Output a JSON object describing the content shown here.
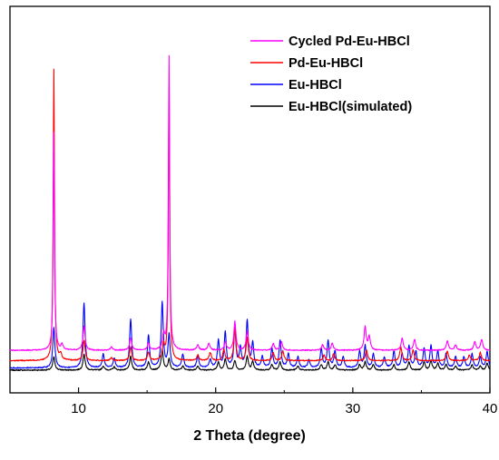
{
  "chart_data": {
    "type": "line",
    "xlabel": "2 Theta (degree)",
    "ylabel": "",
    "xlim": [
      5,
      40
    ],
    "xticks": [
      10,
      20,
      30,
      40
    ],
    "y_axis_ticks": false,
    "legend_position": "top-right",
    "series": [
      {
        "name": "Cycled Pd-Eu-HBCl",
        "color": "#ff00ff",
        "baseline": 0.73,
        "peaks": [
          [
            8.2,
            8.0
          ],
          [
            8.8,
            0.2
          ],
          [
            10.4,
            0.9
          ],
          [
            12.4,
            0.12
          ],
          [
            13.8,
            0.45
          ],
          [
            15.1,
            0.25
          ],
          [
            16.2,
            0.55
          ],
          [
            16.6,
            10.8
          ],
          [
            18.7,
            0.2
          ],
          [
            19.5,
            0.25
          ],
          [
            20.7,
            0.3
          ],
          [
            21.4,
            1.05
          ],
          [
            22.3,
            0.7
          ],
          [
            24.2,
            0.25
          ],
          [
            24.8,
            0.3
          ],
          [
            27.8,
            0.2
          ],
          [
            28.5,
            0.25
          ],
          [
            30.9,
            0.85
          ],
          [
            31.2,
            0.5
          ],
          [
            33.6,
            0.45
          ],
          [
            34.5,
            0.4
          ],
          [
            36.9,
            0.35
          ],
          [
            37.5,
            0.2
          ],
          [
            38.9,
            0.3
          ],
          [
            39.4,
            0.4
          ]
        ]
      },
      {
        "name": "Pd-Eu-HBCl",
        "color": "#ff0000",
        "baseline": 0.35,
        "peaks": [
          [
            8.2,
            10.7
          ],
          [
            8.7,
            0.2
          ],
          [
            10.4,
            0.75
          ],
          [
            12.4,
            0.1
          ],
          [
            13.8,
            0.5
          ],
          [
            15.1,
            0.3
          ],
          [
            16.2,
            0.55
          ],
          [
            16.6,
            10.0
          ],
          [
            18.7,
            0.2
          ],
          [
            19.6,
            0.3
          ],
          [
            20.6,
            0.4
          ],
          [
            21.4,
            1.2
          ],
          [
            22.3,
            0.85
          ],
          [
            24.2,
            0.3
          ],
          [
            24.9,
            0.35
          ],
          [
            27.9,
            0.2
          ],
          [
            28.6,
            0.25
          ],
          [
            31.0,
            0.4
          ],
          [
            33.5,
            0.5
          ],
          [
            34.4,
            0.4
          ],
          [
            36.9,
            0.35
          ],
          [
            38.5,
            0.2
          ],
          [
            39.3,
            0.3
          ]
        ]
      },
      {
        "name": "Eu-HBCl",
        "color": "#0000ff",
        "baseline": 0.08,
        "peaks": [
          [
            8.2,
            1.5
          ],
          [
            10.4,
            2.4
          ],
          [
            11.8,
            0.5
          ],
          [
            12.6,
            0.35
          ],
          [
            13.8,
            1.8
          ],
          [
            15.1,
            1.2
          ],
          [
            16.1,
            2.4
          ],
          [
            16.6,
            1.2
          ],
          [
            17.6,
            0.5
          ],
          [
            18.7,
            0.45
          ],
          [
            19.6,
            0.3
          ],
          [
            20.2,
            1.0
          ],
          [
            20.7,
            1.3
          ],
          [
            21.4,
            1.4
          ],
          [
            21.8,
            0.7
          ],
          [
            22.3,
            1.7
          ],
          [
            22.7,
            0.9
          ],
          [
            23.4,
            0.4
          ],
          [
            24.1,
            0.7
          ],
          [
            24.7,
            1.0
          ],
          [
            25.3,
            0.5
          ],
          [
            26.0,
            0.4
          ],
          [
            26.8,
            0.3
          ],
          [
            27.7,
            0.7
          ],
          [
            28.2,
            1.0
          ],
          [
            28.7,
            0.6
          ],
          [
            29.3,
            0.4
          ],
          [
            30.5,
            0.6
          ],
          [
            30.9,
            0.8
          ],
          [
            31.5,
            0.5
          ],
          [
            32.3,
            0.4
          ],
          [
            33.0,
            0.6
          ],
          [
            33.6,
            0.5
          ],
          [
            34.1,
            0.8
          ],
          [
            34.6,
            0.6
          ],
          [
            35.2,
            0.7
          ],
          [
            35.7,
            0.8
          ],
          [
            36.2,
            0.6
          ],
          [
            36.8,
            0.5
          ],
          [
            37.5,
            0.4
          ],
          [
            38.1,
            0.4
          ],
          [
            38.7,
            0.5
          ],
          [
            39.3,
            0.4
          ],
          [
            39.8,
            0.6
          ]
        ]
      },
      {
        "name": "Eu-HBCl(simulated)",
        "color": "#000000",
        "baseline": 0.0,
        "peaks": [
          [
            8.2,
            0.5
          ],
          [
            10.4,
            0.6
          ],
          [
            11.8,
            0.15
          ],
          [
            12.6,
            0.12
          ],
          [
            13.8,
            0.5
          ],
          [
            15.1,
            0.3
          ],
          [
            16.1,
            0.75
          ],
          [
            16.6,
            0.4
          ],
          [
            17.6,
            0.15
          ],
          [
            18.7,
            0.15
          ],
          [
            20.2,
            0.3
          ],
          [
            20.7,
            0.4
          ],
          [
            21.4,
            0.35
          ],
          [
            22.3,
            0.5
          ],
          [
            22.7,
            0.3
          ],
          [
            24.1,
            0.2
          ],
          [
            24.7,
            0.3
          ],
          [
            26.0,
            0.15
          ],
          [
            27.7,
            0.2
          ],
          [
            28.2,
            0.3
          ],
          [
            28.7,
            0.2
          ],
          [
            30.5,
            0.2
          ],
          [
            30.9,
            0.3
          ],
          [
            31.5,
            0.2
          ],
          [
            33.0,
            0.2
          ],
          [
            34.1,
            0.3
          ],
          [
            35.2,
            0.3
          ],
          [
            35.7,
            0.35
          ],
          [
            36.2,
            0.25
          ],
          [
            36.8,
            0.2
          ],
          [
            37.5,
            0.15
          ],
          [
            38.7,
            0.2
          ],
          [
            39.3,
            0.15
          ],
          [
            39.8,
            0.25
          ]
        ]
      }
    ]
  }
}
